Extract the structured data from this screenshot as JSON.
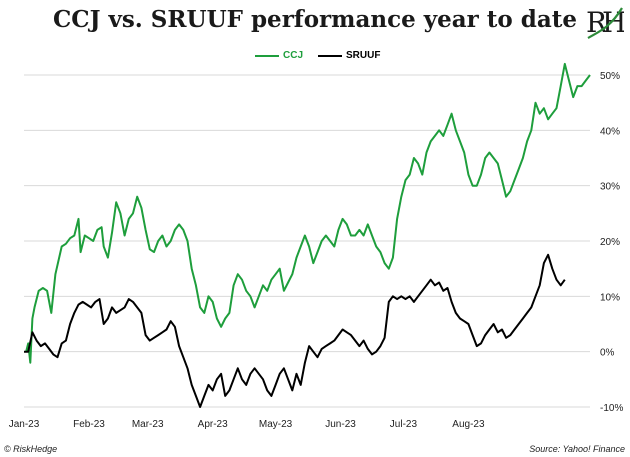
{
  "title": "CCJ vs. SRUUF performance year to date",
  "logo": {
    "text": "RH",
    "accent": "#2e8b3a"
  },
  "footer": {
    "left": "© RiskHedge",
    "right": "Source: Yahoo! Finance"
  },
  "colors": {
    "ccj": "#1e9e3c",
    "sruuf": "#000000",
    "grid": "#d9d9d9"
  },
  "chart_data": {
    "type": "line",
    "title": "CCJ vs. SRUUF performance year to date",
    "ylim": [
      -10,
      50
    ],
    "yticks": [
      "50%",
      "40%",
      "30%",
      "20%",
      "10%",
      "0%",
      "-10%"
    ],
    "ytick_values": [
      50,
      40,
      30,
      20,
      10,
      0,
      -10
    ],
    "xticks": [
      "Jan-23",
      "Feb-23",
      "Mar-23",
      "Apr-23",
      "May-23",
      "Jun-23",
      "Jul-23",
      "Aug-23"
    ],
    "xtick_days": [
      0,
      31,
      59,
      90,
      120,
      151,
      181,
      212
    ],
    "grid": true,
    "legend": "top-center",
    "series": [
      {
        "name": "CCJ",
        "points": [
          [
            1,
            0
          ],
          [
            2,
            1.5
          ],
          [
            3,
            -2
          ],
          [
            4,
            6
          ],
          [
            5,
            8
          ],
          [
            7,
            11
          ],
          [
            9,
            11.5
          ],
          [
            11,
            11
          ],
          [
            13,
            7
          ],
          [
            15,
            14
          ],
          [
            18,
            19
          ],
          [
            20,
            19.5
          ],
          [
            22,
            20.5
          ],
          [
            24,
            21
          ],
          [
            26,
            24
          ],
          [
            27,
            18
          ],
          [
            29,
            21
          ],
          [
            31,
            20.5
          ],
          [
            33,
            20
          ],
          [
            35,
            22
          ],
          [
            37,
            22.5
          ],
          [
            38,
            19
          ],
          [
            40,
            17
          ],
          [
            42,
            21.5
          ],
          [
            44,
            27
          ],
          [
            46,
            25
          ],
          [
            48,
            21
          ],
          [
            50,
            24
          ],
          [
            52,
            25
          ],
          [
            54,
            28
          ],
          [
            56,
            26
          ],
          [
            58,
            22
          ],
          [
            60,
            18.5
          ],
          [
            62,
            18
          ],
          [
            64,
            20
          ],
          [
            66,
            21
          ],
          [
            68,
            19
          ],
          [
            70,
            20
          ],
          [
            72,
            22
          ],
          [
            74,
            23
          ],
          [
            76,
            22
          ],
          [
            78,
            20
          ],
          [
            80,
            15
          ],
          [
            82,
            12
          ],
          [
            84,
            8
          ],
          [
            86,
            7
          ],
          [
            88,
            10
          ],
          [
            90,
            9
          ],
          [
            92,
            6
          ],
          [
            94,
            4.5
          ],
          [
            96,
            6
          ],
          [
            98,
            7
          ],
          [
            100,
            12
          ],
          [
            102,
            14
          ],
          [
            104,
            13
          ],
          [
            106,
            11
          ],
          [
            108,
            10
          ],
          [
            110,
            8
          ],
          [
            112,
            10
          ],
          [
            114,
            12
          ],
          [
            116,
            11
          ],
          [
            118,
            13
          ],
          [
            120,
            14
          ],
          [
            122,
            15
          ],
          [
            124,
            11
          ],
          [
            126,
            12.5
          ],
          [
            128,
            14
          ],
          [
            130,
            17
          ],
          [
            132,
            19
          ],
          [
            134,
            21
          ],
          [
            136,
            19
          ],
          [
            138,
            16
          ],
          [
            140,
            18
          ],
          [
            142,
            20
          ],
          [
            144,
            21
          ],
          [
            146,
            20
          ],
          [
            148,
            19
          ],
          [
            150,
            22
          ],
          [
            152,
            24
          ],
          [
            154,
            23
          ],
          [
            156,
            21
          ],
          [
            158,
            21
          ],
          [
            160,
            22
          ],
          [
            162,
            21
          ],
          [
            164,
            23
          ],
          [
            166,
            21
          ],
          [
            168,
            19
          ],
          [
            170,
            18
          ],
          [
            172,
            16
          ],
          [
            174,
            15
          ],
          [
            176,
            17
          ],
          [
            178,
            24
          ],
          [
            180,
            28
          ],
          [
            182,
            31
          ],
          [
            184,
            32
          ],
          [
            186,
            35
          ],
          [
            188,
            34
          ],
          [
            190,
            32
          ],
          [
            192,
            36
          ],
          [
            194,
            38
          ],
          [
            196,
            39
          ],
          [
            198,
            40
          ],
          [
            200,
            39
          ],
          [
            202,
            41
          ],
          [
            204,
            43
          ],
          [
            206,
            40
          ],
          [
            208,
            38
          ],
          [
            210,
            36
          ],
          [
            212,
            32
          ],
          [
            214,
            30
          ],
          [
            216,
            30
          ],
          [
            218,
            32
          ],
          [
            220,
            35
          ],
          [
            222,
            36
          ],
          [
            224,
            35
          ],
          [
            226,
            34
          ],
          [
            228,
            31
          ],
          [
            230,
            28
          ],
          [
            232,
            29
          ],
          [
            234,
            31
          ],
          [
            236,
            33
          ],
          [
            238,
            35
          ],
          [
            240,
            38
          ],
          [
            242,
            40
          ],
          [
            244,
            45
          ],
          [
            246,
            43
          ],
          [
            248,
            44
          ],
          [
            250,
            42
          ],
          [
            252,
            43
          ],
          [
            254,
            44
          ],
          [
            256,
            48
          ],
          [
            258,
            52
          ],
          [
            260,
            49
          ],
          [
            262,
            46
          ],
          [
            264,
            48
          ],
          [
            266,
            48
          ],
          [
            268,
            49
          ],
          [
            270,
            50
          ]
        ]
      },
      {
        "name": "SRUUF",
        "points": [
          [
            0,
            0
          ],
          [
            2,
            0
          ],
          [
            4,
            3.5
          ],
          [
            6,
            2
          ],
          [
            8,
            1
          ],
          [
            10,
            1.5
          ],
          [
            12,
            0.5
          ],
          [
            14,
            -0.5
          ],
          [
            16,
            -1
          ],
          [
            18,
            1.5
          ],
          [
            20,
            2
          ],
          [
            22,
            5
          ],
          [
            24,
            7
          ],
          [
            26,
            8.5
          ],
          [
            28,
            9
          ],
          [
            30,
            8.5
          ],
          [
            32,
            8
          ],
          [
            34,
            9
          ],
          [
            36,
            9.5
          ],
          [
            38,
            5
          ],
          [
            40,
            6
          ],
          [
            42,
            8
          ],
          [
            44,
            7
          ],
          [
            46,
            7.5
          ],
          [
            48,
            8
          ],
          [
            50,
            9.5
          ],
          [
            52,
            9
          ],
          [
            54,
            8
          ],
          [
            56,
            7
          ],
          [
            58,
            3
          ],
          [
            60,
            2
          ],
          [
            62,
            2.5
          ],
          [
            64,
            3
          ],
          [
            66,
            3.5
          ],
          [
            68,
            4
          ],
          [
            70,
            5.5
          ],
          [
            72,
            4.5
          ],
          [
            74,
            1
          ],
          [
            76,
            -1
          ],
          [
            78,
            -3
          ],
          [
            80,
            -6
          ],
          [
            82,
            -8
          ],
          [
            84,
            -10
          ],
          [
            86,
            -8
          ],
          [
            88,
            -6
          ],
          [
            90,
            -7
          ],
          [
            92,
            -5
          ],
          [
            94,
            -4
          ],
          [
            96,
            -8
          ],
          [
            98,
            -7
          ],
          [
            100,
            -5
          ],
          [
            102,
            -3
          ],
          [
            104,
            -5
          ],
          [
            106,
            -6
          ],
          [
            108,
            -4
          ],
          [
            110,
            -3
          ],
          [
            112,
            -4
          ],
          [
            114,
            -5
          ],
          [
            116,
            -7
          ],
          [
            118,
            -8
          ],
          [
            120,
            -6
          ],
          [
            122,
            -4
          ],
          [
            124,
            -3
          ],
          [
            126,
            -5
          ],
          [
            128,
            -7
          ],
          [
            130,
            -4
          ],
          [
            132,
            -6
          ],
          [
            134,
            -2
          ],
          [
            136,
            1
          ],
          [
            138,
            0
          ],
          [
            140,
            -1
          ],
          [
            142,
            0.5
          ],
          [
            144,
            1
          ],
          [
            146,
            1.5
          ],
          [
            148,
            2
          ],
          [
            150,
            3
          ],
          [
            152,
            4
          ],
          [
            154,
            3.5
          ],
          [
            156,
            3
          ],
          [
            158,
            2
          ],
          [
            160,
            1
          ],
          [
            162,
            2
          ],
          [
            164,
            0.5
          ],
          [
            166,
            -0.5
          ],
          [
            168,
            0
          ],
          [
            170,
            1
          ],
          [
            172,
            2.5
          ],
          [
            174,
            9
          ],
          [
            176,
            10
          ],
          [
            178,
            9.5
          ],
          [
            180,
            10
          ],
          [
            182,
            9.5
          ],
          [
            184,
            10
          ],
          [
            186,
            9
          ],
          [
            188,
            10
          ],
          [
            190,
            11
          ],
          [
            192,
            12
          ],
          [
            194,
            13
          ],
          [
            196,
            12
          ],
          [
            198,
            12.5
          ],
          [
            200,
            11
          ],
          [
            202,
            11.5
          ],
          [
            204,
            9
          ],
          [
            206,
            7
          ],
          [
            208,
            6
          ],
          [
            210,
            5.5
          ],
          [
            212,
            5
          ],
          [
            214,
            3
          ],
          [
            216,
            1
          ],
          [
            218,
            1.5
          ],
          [
            220,
            3
          ],
          [
            222,
            4
          ],
          [
            224,
            5
          ],
          [
            226,
            3.5
          ],
          [
            228,
            4
          ],
          [
            230,
            2.5
          ],
          [
            232,
            3
          ],
          [
            234,
            4
          ],
          [
            236,
            5
          ],
          [
            238,
            6
          ],
          [
            240,
            7
          ],
          [
            242,
            8
          ],
          [
            244,
            10
          ],
          [
            246,
            12
          ],
          [
            248,
            16
          ],
          [
            250,
            17.5
          ],
          [
            252,
            15
          ],
          [
            254,
            13
          ],
          [
            256,
            12
          ],
          [
            258,
            13
          ]
        ]
      }
    ]
  }
}
